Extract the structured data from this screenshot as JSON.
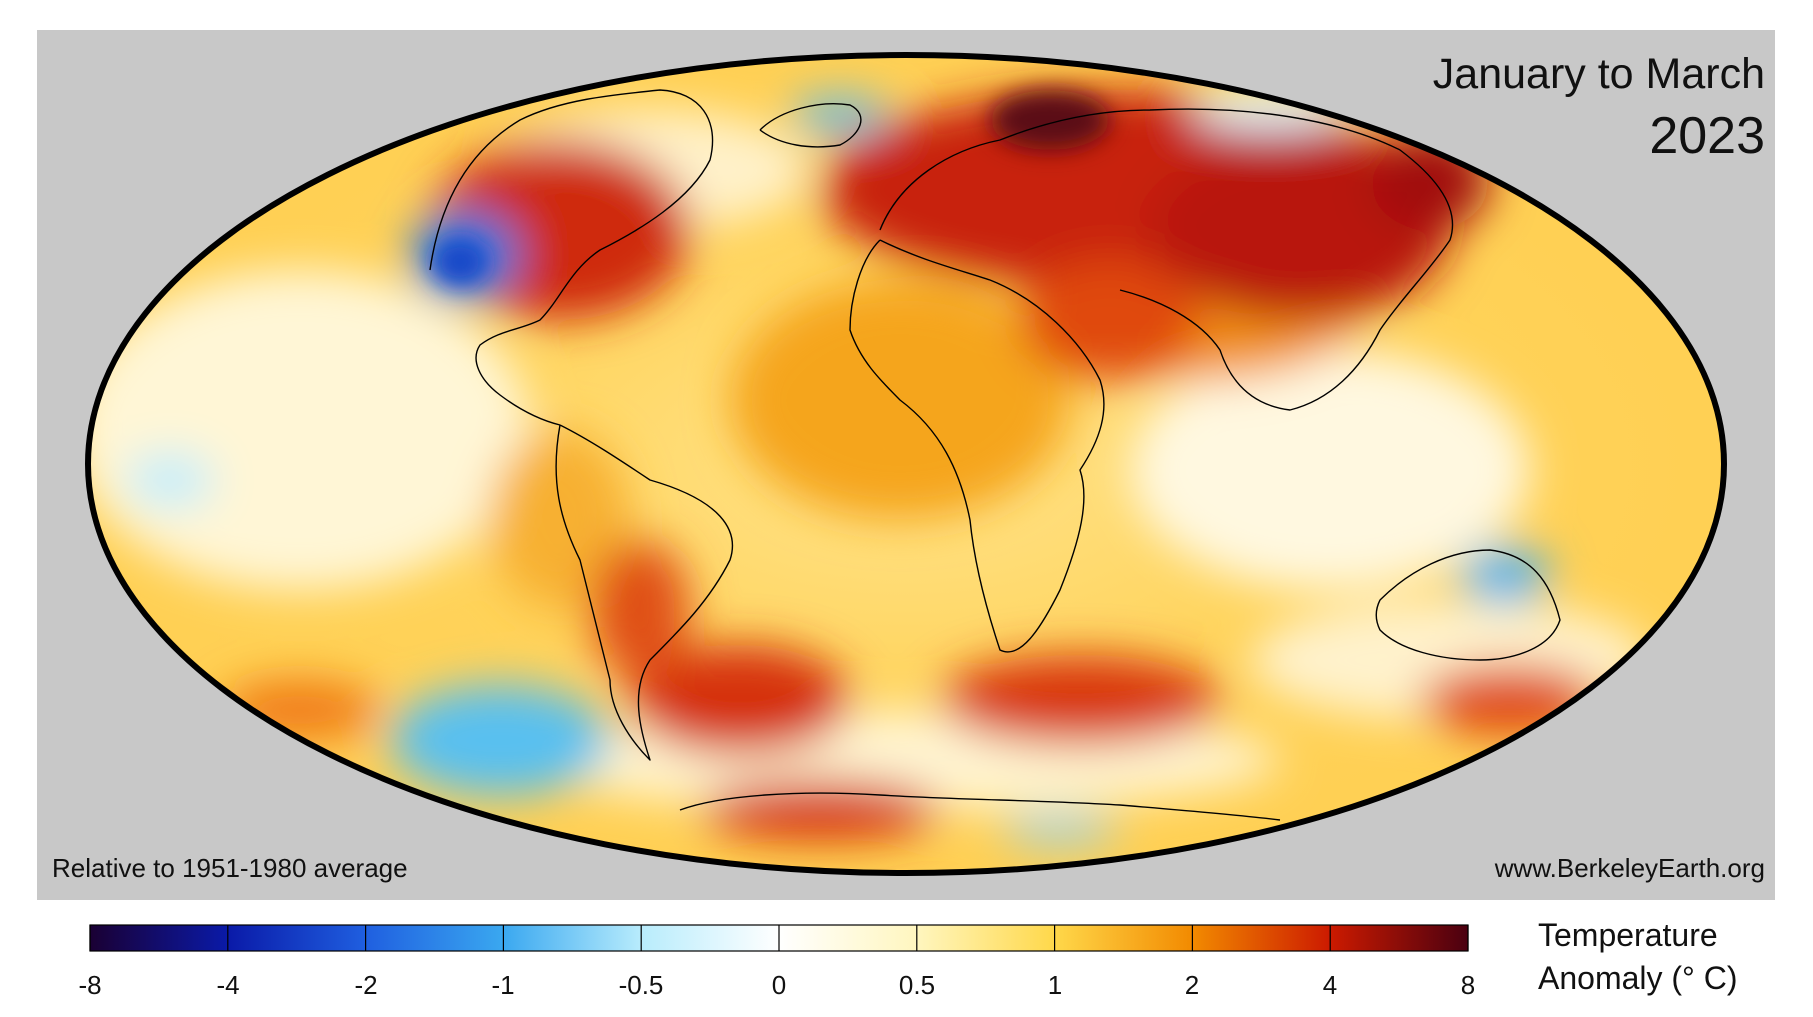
{
  "title": {
    "period": "January to March",
    "year": "2023"
  },
  "notes": {
    "baseline": "Relative to 1951-1980 average",
    "source": "www.BerkeleyEarth.org"
  },
  "map": {
    "projection": "Mollweide",
    "background_color": "#c8c8c8",
    "outline_color": "#000000",
    "warm_regions": [
      "Siberia",
      "Eastern North America",
      "Europe",
      "Arabia",
      "South Atlantic",
      "Southern Ocean near Africa",
      "East Asia"
    ],
    "cool_regions": [
      "Western North America",
      "Southeast Pacific",
      "Northern Australia",
      "Central Pacific"
    ]
  },
  "legend": {
    "title_line1": "Temperature",
    "title_line2": "Anomaly (° C)",
    "ticks": [
      "-8",
      "-4",
      "-2",
      "-1",
      "-0.5",
      "0",
      "0.5",
      "1",
      "2",
      "4",
      "8"
    ],
    "colors": [
      "#1a0033",
      "#0a1aa8",
      "#1f5fe0",
      "#3aa8f0",
      "#b8ecfc",
      "#ffffff",
      "#fff6bf",
      "#ffd84a",
      "#f28a00",
      "#cc1a00",
      "#4a0010"
    ]
  }
}
